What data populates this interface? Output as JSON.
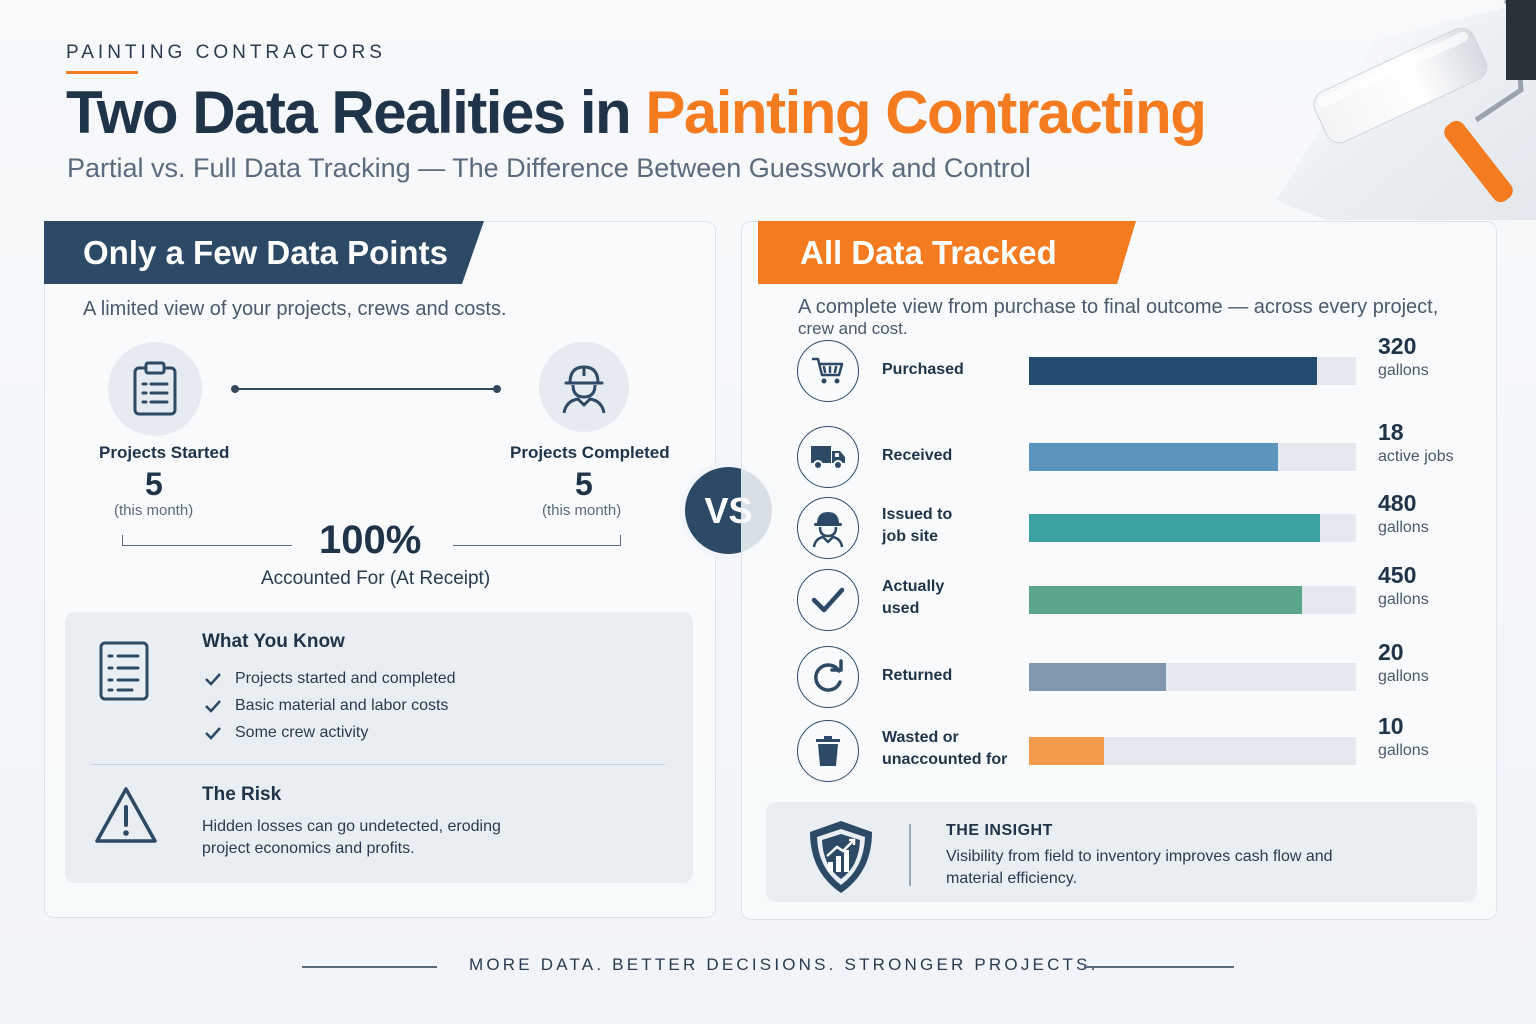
{
  "header": {
    "eyebrow": "PAINTING CONTRACTORS",
    "title_part1": "Two Data Realities in",
    "title_part2": "Painting Contracting",
    "subtitle": "Partial vs. Full Data Tracking — The Difference Between Guesswork and Control"
  },
  "colors": {
    "navy": "#2c4a66",
    "orange": "#f47b20"
  },
  "left_panel": {
    "tab_label": "Only a Few Data Points",
    "description": "A limited view of your projects, crews and costs.",
    "stats": [
      {
        "icon": "clipboard-icon",
        "label": "Projects Started",
        "value": "5",
        "note": "(this month)"
      },
      {
        "icon": "worker-icon",
        "label": "Projects Completed",
        "value": "5",
        "note": "(this month)"
      }
    ],
    "accounted": {
      "value": "100%",
      "label": "Accounted For (At Receipt)"
    },
    "know": {
      "title": "What You Know",
      "items": [
        "Projects started and completed",
        "Basic material and labor costs",
        "Some crew activity"
      ]
    },
    "risk": {
      "title": "The Risk",
      "text": "Hidden losses can go undetected, eroding project economics and profits."
    }
  },
  "vs_label": "VS",
  "right_panel": {
    "tab_label": "All Data Tracked",
    "description_line1": "A complete view from purchase to final outcome — across every project,",
    "description_line2": "crew and cost.",
    "metrics": [
      {
        "icon": "cart-icon",
        "label_line1": "Purchased",
        "label_line2": "",
        "value": "320",
        "unit": "gallons",
        "fill": 0.88,
        "color": "#234c70"
      },
      {
        "icon": "truck-icon",
        "label_line1": "Received",
        "label_line2": "",
        "value": "18",
        "unit": "active jobs",
        "fill": 0.76,
        "color": "#5b94bd"
      },
      {
        "icon": "worker-icon",
        "label_line1": "Issued to",
        "label_line2": "job site",
        "value": "480",
        "unit": "gallons",
        "fill": 0.89,
        "color": "#3ea1a1"
      },
      {
        "icon": "checkmark-icon",
        "label_line1": "Actually",
        "label_line2": "used",
        "value": "450",
        "unit": "gallons",
        "fill": 0.835,
        "color": "#5aa58c"
      },
      {
        "icon": "refresh-icon",
        "label_line1": "Returned",
        "label_line2": "",
        "value": "20",
        "unit": "gallons",
        "fill": 0.42,
        "color": "#8197ae"
      },
      {
        "icon": "trash-icon",
        "label_line1": "Wasted or",
        "label_line2": "unaccounted for",
        "value": "10",
        "unit": "gallons",
        "fill": 0.23,
        "color": "#f39a4b"
      }
    ],
    "insight": {
      "title": "THE INSIGHT",
      "text": "Visibility from field to inventory improves cash flow and material efficiency."
    }
  },
  "footer": {
    "tagline": "MORE DATA. BETTER DECISIONS. STRONGER PROJECTS."
  }
}
